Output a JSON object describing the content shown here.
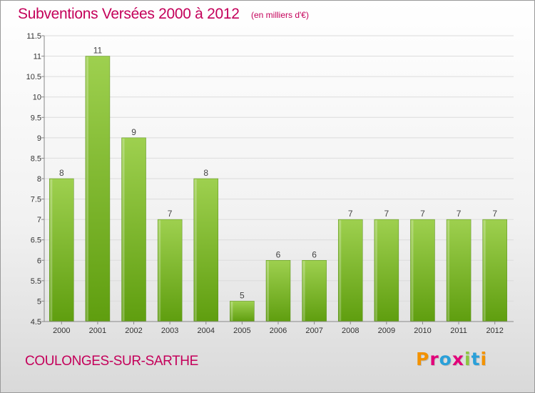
{
  "header": {
    "title": "Subventions Versées 2000 à 2012",
    "subtitle": "(en milliers d'€)"
  },
  "footer": {
    "commune": "COULONGES-SUR-SARTHE",
    "logo": "Proxiti",
    "logo_colors": [
      "#f39200",
      "#e2007a",
      "#2aa0d9",
      "#e2007a",
      "#8dc63f",
      "#2aa0d9",
      "#f39200"
    ]
  },
  "chart_data": {
    "type": "bar",
    "categories": [
      "2000",
      "2001",
      "2002",
      "2003",
      "2004",
      "2005",
      "2006",
      "2007",
      "2008",
      "2009",
      "2010",
      "2011",
      "2012"
    ],
    "values": [
      8,
      11,
      9,
      7,
      8,
      5,
      6,
      6,
      7,
      7,
      7,
      7,
      7
    ],
    "data_labels": [
      "8",
      "11",
      "9",
      "7",
      "8",
      "5",
      "6",
      "6",
      "7",
      "7",
      "7",
      "7",
      "7"
    ],
    "title": "Subventions Versées 2000 à 2012",
    "ylim": [
      4.5,
      11.5
    ],
    "yticks": [
      4.5,
      5,
      5.5,
      6,
      6.5,
      7,
      7.5,
      8,
      8.5,
      9,
      9.5,
      10,
      10.5,
      11,
      11.5
    ],
    "ytick_labels": [
      "4.5",
      "5",
      "5.5",
      "6",
      "6.5",
      "7",
      "7.5",
      "8",
      "8.5",
      "9",
      "9.5",
      "10",
      "10.5",
      "11",
      "11.5"
    ],
    "grid": true,
    "bar_color": "#8cc63f"
  }
}
